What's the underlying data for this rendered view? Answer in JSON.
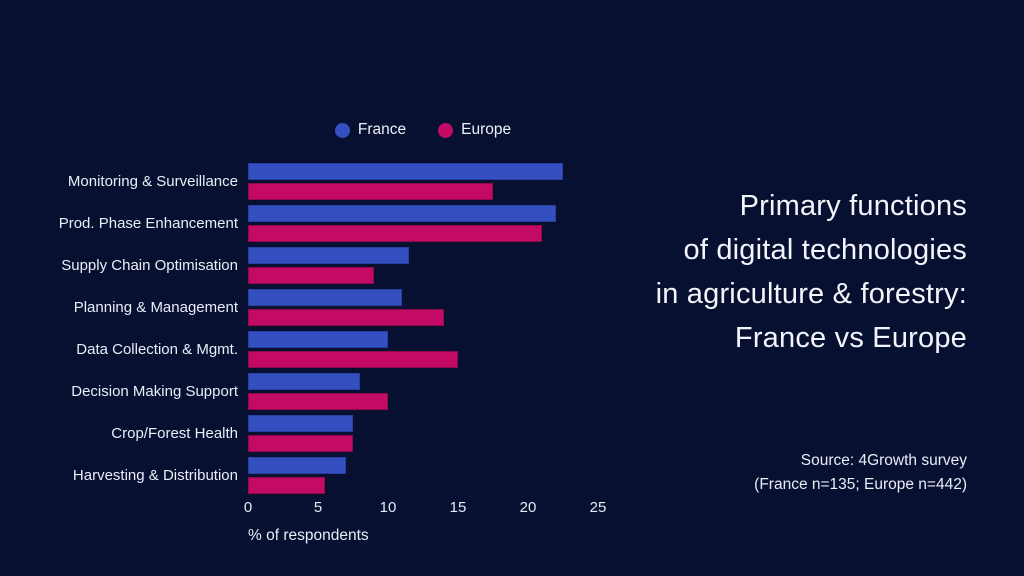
{
  "background": "#071031",
  "colors": {
    "background": "#071031",
    "text": "#edf0f8",
    "france": "#3450c0",
    "europe": "#c30a64"
  },
  "title_lines": [
    "Primary functions",
    "of digital technologies",
    "in agriculture & forestry:",
    "France vs Europe"
  ],
  "source_lines": [
    "Source: 4Growth survey",
    "(France n=135; Europe n=442)"
  ],
  "chart_data": {
    "type": "bar",
    "orientation": "horizontal",
    "title": "Primary functions of digital technologies in agriculture & forestry: France vs Europe",
    "xlabel": "% of respondents",
    "ylabel": "",
    "xlim": [
      0,
      25
    ],
    "xticks": [
      0,
      5,
      10,
      15,
      20,
      25
    ],
    "grid": false,
    "legend_position": "top-center",
    "categories": [
      "Monitoring & Surveillance",
      "Prod. Phase Enhancement",
      "Supply Chain Optimisation",
      "Planning & Management",
      "Data Collection & Mgmt.",
      "Decision Making Support",
      "Crop/Forest Health",
      "Harvesting & Distribution"
    ],
    "series": [
      {
        "name": "France",
        "color": "#3450c0",
        "edge": "#2a3da0",
        "values": [
          22.5,
          22,
          11.5,
          11,
          10,
          8,
          7.5,
          7
        ]
      },
      {
        "name": "Europe",
        "color": "#c30a64",
        "edge": "#8e0a4b",
        "values": [
          17.5,
          21,
          9,
          14,
          15,
          10,
          7.5,
          5.5
        ]
      }
    ]
  }
}
